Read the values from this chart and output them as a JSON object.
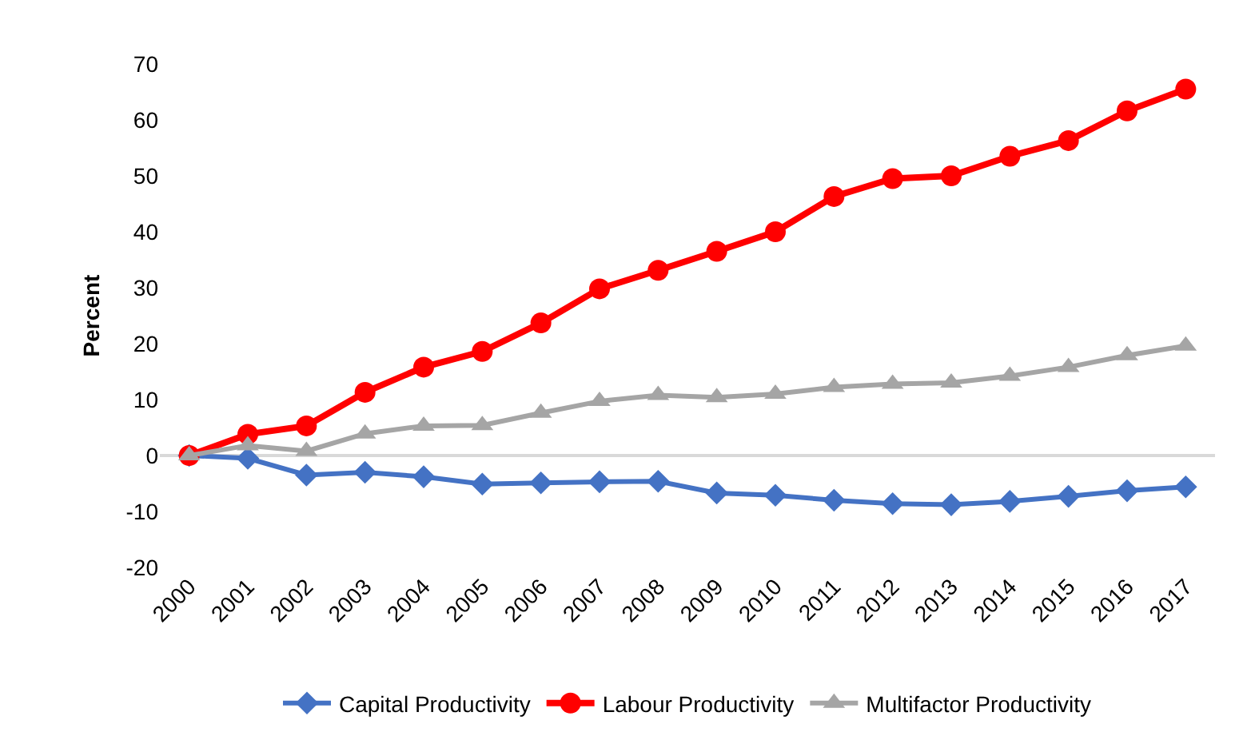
{
  "chart_data": {
    "type": "line",
    "ylabel": "Percent",
    "categories": [
      "2000",
      "2001",
      "2002",
      "2003",
      "2004",
      "2005",
      "2006",
      "2007",
      "2008",
      "2009",
      "2010",
      "2011",
      "2012",
      "2013",
      "2014",
      "2015",
      "2016",
      "2017"
    ],
    "series": [
      {
        "name": "Capital Productivity",
        "color": "#4472c4",
        "marker": "diamond",
        "values": [
          0,
          -0.5,
          -3.5,
          -3,
          -3.8,
          -5.1,
          -4.9,
          -4.7,
          -4.6,
          -6.7,
          -7.1,
          -8,
          -8.6,
          -8.8,
          -8.2,
          -7.3,
          -6.3,
          -5.6
        ]
      },
      {
        "name": "Labour Productivity",
        "color": "#ff0000",
        "marker": "circle",
        "values": [
          0,
          3.8,
          5.3,
          11.3,
          15.8,
          18.6,
          23.7,
          29.8,
          33.1,
          36.5,
          40,
          46.3,
          49.5,
          50,
          53.5,
          56.3,
          61.6,
          65.5
        ]
      },
      {
        "name": "Multifactor Productivity",
        "color": "#a5a5a5",
        "marker": "triangle",
        "values": [
          0,
          1.8,
          0.8,
          3.9,
          5.3,
          5.4,
          7.6,
          9.7,
          10.8,
          10.4,
          11,
          12.2,
          12.8,
          13,
          14.2,
          15.8,
          17.9,
          19.6
        ]
      }
    ],
    "ylim": [
      -20,
      70
    ],
    "yticks": [
      -20,
      -10,
      0,
      10,
      20,
      30,
      40,
      50,
      60,
      70
    ],
    "ref_lines": [
      {
        "axis": "y",
        "value": 0,
        "color": "#d9d9d9"
      }
    ],
    "grid": false,
    "legend": "bottom",
    "line_style": "solid"
  }
}
